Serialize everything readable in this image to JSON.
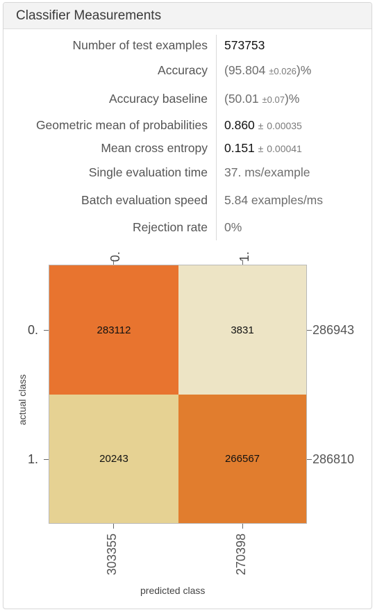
{
  "panel": {
    "title": "Classifier Measurements"
  },
  "metrics": [
    {
      "label": "Number of test examples",
      "value": "573753"
    },
    {
      "label": "Accuracy",
      "open": "(",
      "value": "95.804",
      "pm": "±",
      "err": "0.026",
      "close": ")%"
    },
    {
      "label": "Accuracy baseline",
      "open": "(",
      "value": "50.01",
      "pm": "±",
      "err": "0.07",
      "close": ")%"
    },
    {
      "label": "Geometric mean of probabilities",
      "value": "0.860",
      "pm": "±",
      "err": "0.00035"
    },
    {
      "label": "Mean cross entropy",
      "value": "0.151",
      "pm": "±",
      "err": "0.00041"
    },
    {
      "label": "Single evaluation time",
      "value": "37. ms/example"
    },
    {
      "label": "Batch evaluation speed",
      "value": "5.84 examples/ms"
    },
    {
      "label": "Rejection rate",
      "value": "0%"
    }
  ],
  "confusion_matrix": {
    "column_labels": [
      "0.",
      "1."
    ],
    "row_labels": [
      "0.",
      "1."
    ],
    "cells": [
      [
        "283112",
        "3831"
      ],
      [
        "20243",
        "266567"
      ]
    ],
    "row_totals": [
      "286943",
      "286810"
    ],
    "column_totals": [
      "303355",
      "270398"
    ],
    "y_axis_title": "actual class",
    "x_axis_title": "predicted class",
    "colors": {
      "cell_0_0": "#e8742f",
      "cell_0_1": "#ede4c5",
      "cell_1_0": "#e6d293",
      "cell_1_1": "#e17d2e"
    }
  }
}
